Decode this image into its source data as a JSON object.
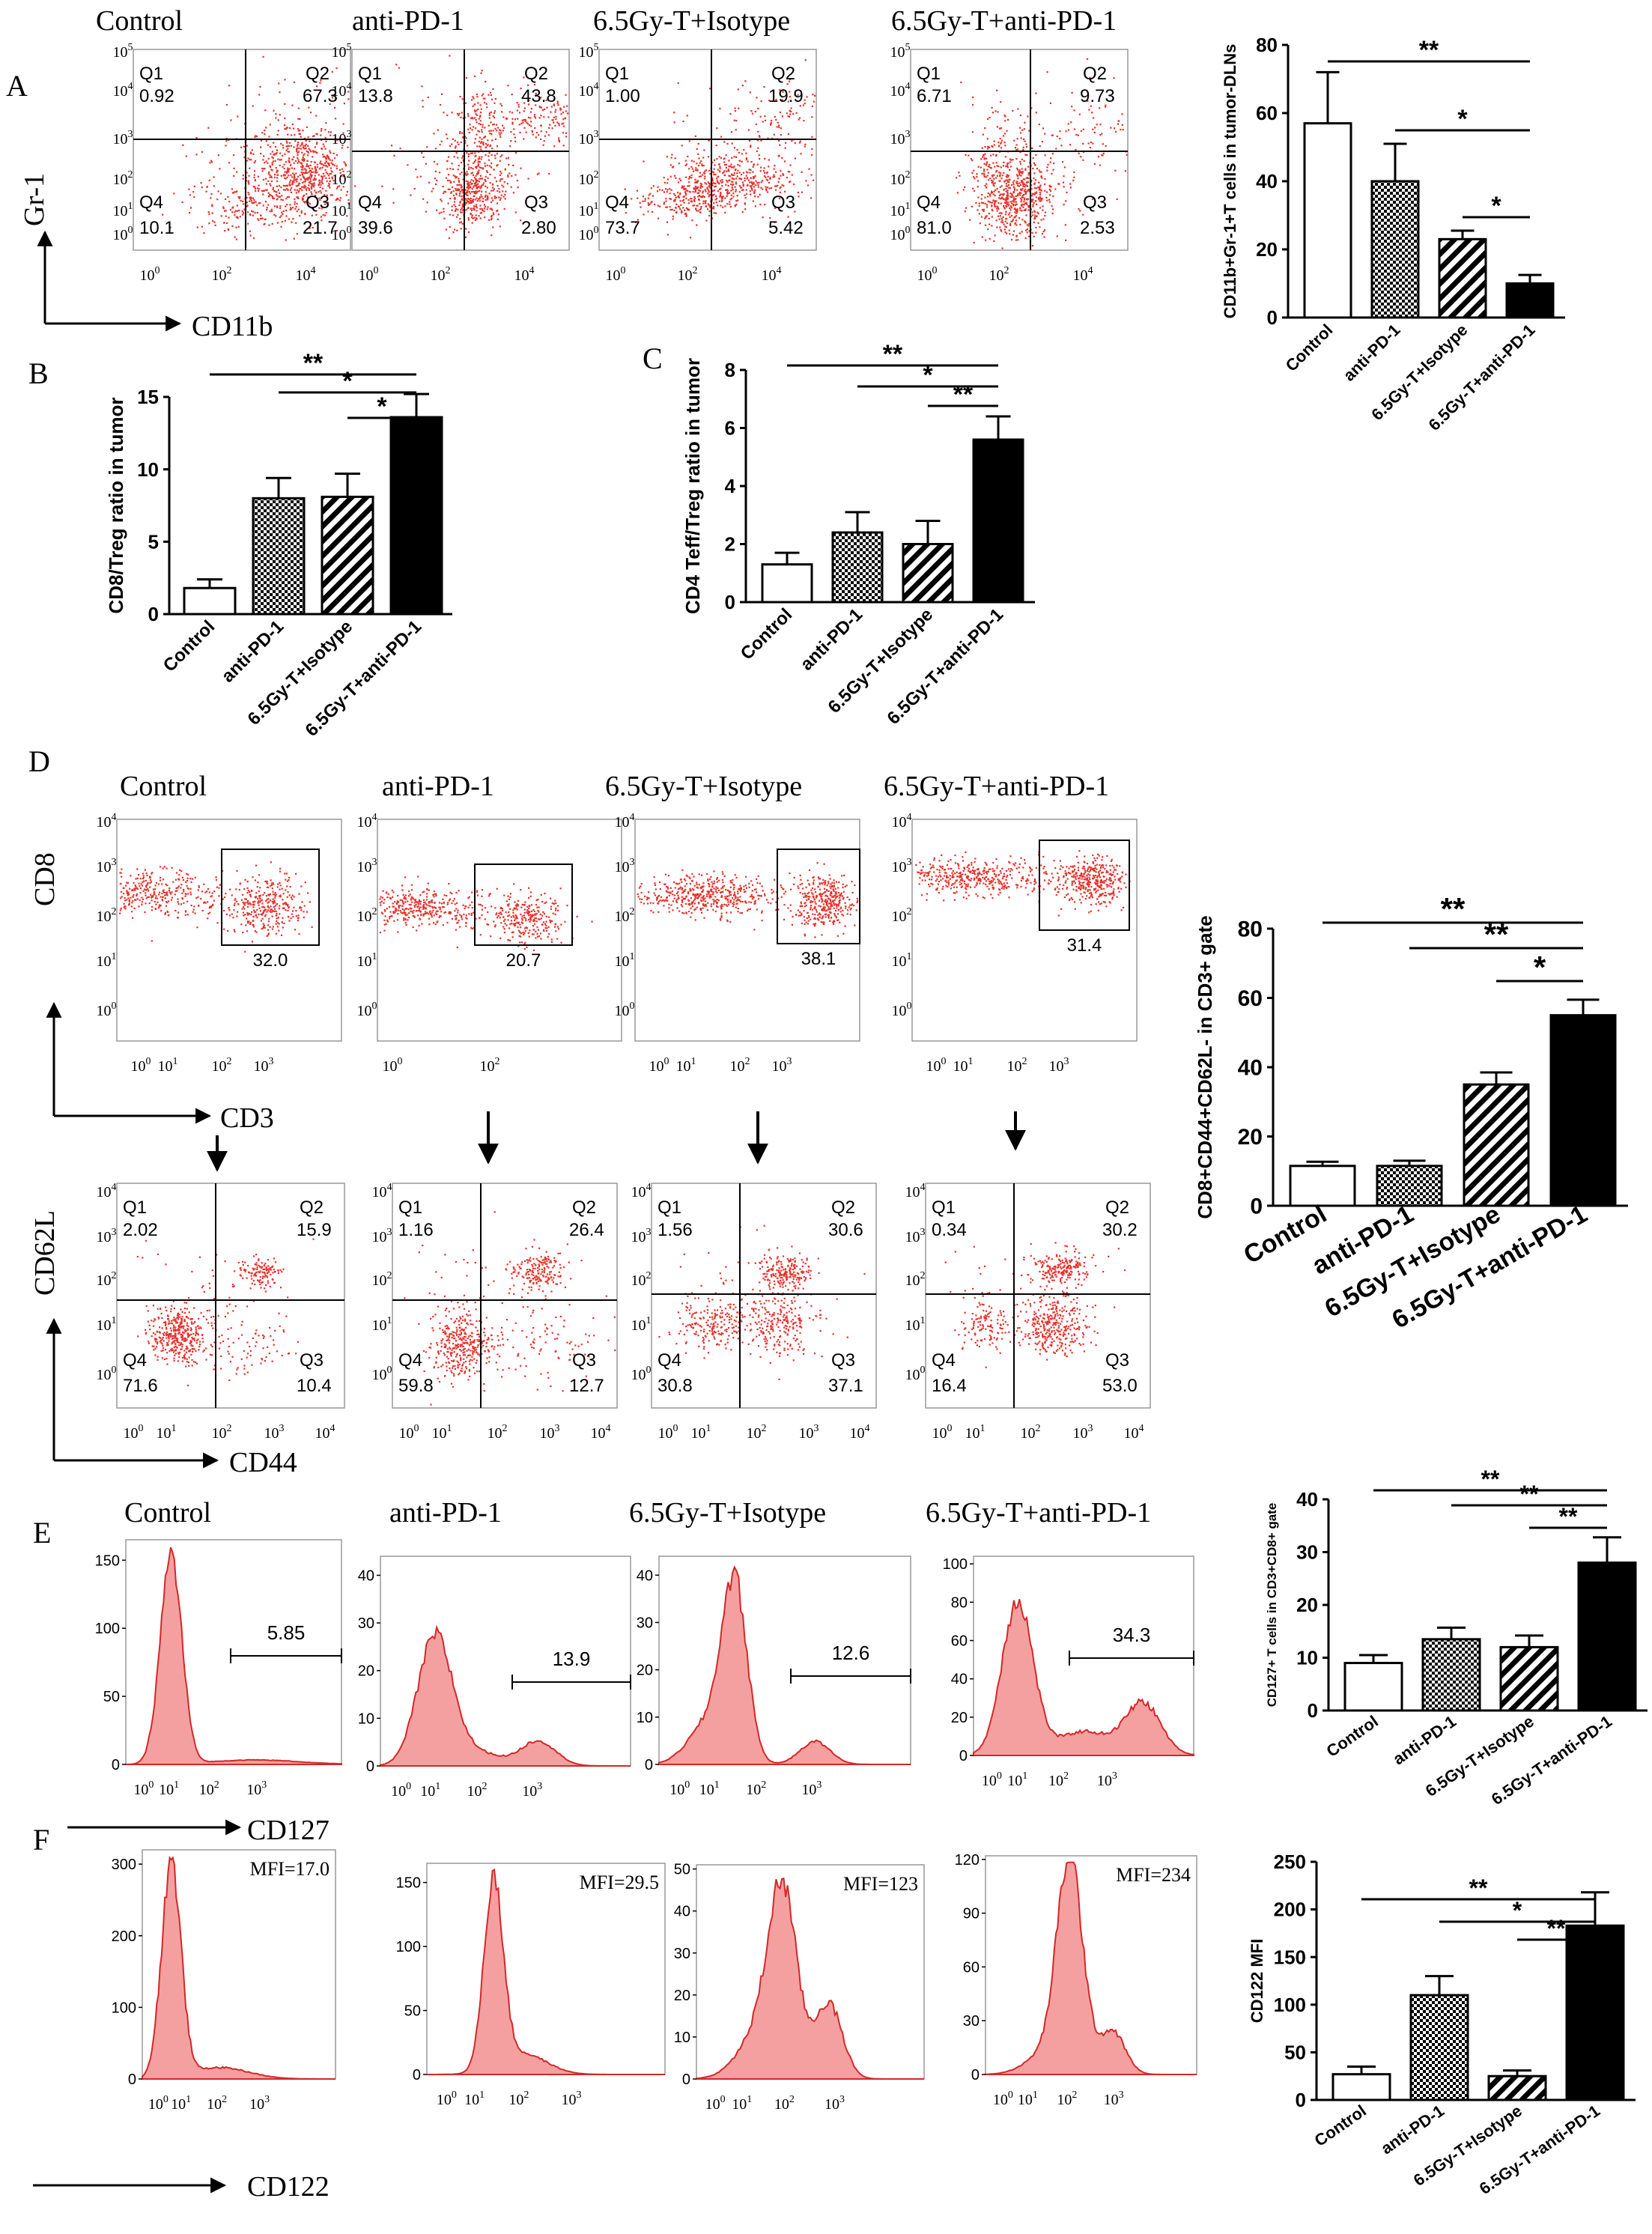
{
  "colors": {
    "dot": "#e8302a",
    "hist_fill": "#f4a0a0",
    "hist_line": "#d42828",
    "ink": "#000000"
  },
  "groups": [
    "Control",
    "anti-PD-1",
    "6.5Gy-T+Isotype",
    "6.5Gy-T+anti-PD-1"
  ],
  "decades_flow": [
    "10^0",
    "10^1",
    "10^2",
    "10^3",
    "10^4",
    "10^5"
  ],
  "panels": {
    "A": "A",
    "B": "B",
    "C": "C",
    "D": "D",
    "E": "E",
    "F": "F"
  },
  "quadrant_labels": [
    "Q1",
    "Q2",
    "Q3",
    "Q4"
  ],
  "axis_names": {
    "gr1": "Gr-1",
    "cd11b": "CD11b",
    "cd8": "CD8",
    "cd3": "CD3",
    "cd62l": "CD62L",
    "cd44": "CD44",
    "cd127": "CD127",
    "cd122": "CD122"
  },
  "panelA_quadrants": [
    {
      "q1": "0.92",
      "q2": "67.3",
      "q3": "21.7",
      "q4": "10.1"
    },
    {
      "q1": "13.8",
      "q2": "43.8",
      "q3": "2.80",
      "q4": "39.6"
    },
    {
      "q1": "1.00",
      "q2": "19.9",
      "q3": "5.42",
      "q4": "73.7"
    },
    {
      "q1": "6.71",
      "q2": "9.73",
      "q3": "2.53",
      "q4": "81.0"
    }
  ],
  "panelD_gates": [
    "32.0",
    "20.7",
    "38.1",
    "31.4"
  ],
  "panelD_quadrants": [
    {
      "q1": "2.02",
      "q2": "15.9",
      "q3": "10.4",
      "q4": "71.6"
    },
    {
      "q1": "1.16",
      "q2": "26.4",
      "q3": "12.7",
      "q4": "59.8"
    },
    {
      "q1": "1.56",
      "q2": "30.6",
      "q3": "37.1",
      "q4": "30.8"
    },
    {
      "q1": "0.34",
      "q2": "30.2",
      "q3": "53.0",
      "q4": "16.4"
    }
  ],
  "panelE_gates": [
    "5.85",
    "13.9",
    "12.6",
    "34.3"
  ],
  "panelF_mfi": [
    "MFI=17.0",
    "MFI=29.5",
    "MFI=123",
    "MFI=234"
  ],
  "chart_data": [
    {
      "id": "A",
      "type": "bar",
      "ylabel": "CD11b+Gr-1+T cells in tumor-DLNs",
      "ylim": [
        0,
        80
      ],
      "yticks": [
        0,
        20,
        40,
        60,
        80
      ],
      "categories": [
        "Control",
        "anti-PD-1",
        "6.5Gy-T+Isotype",
        "6.5Gy-T+anti-PD-1"
      ],
      "values": [
        57,
        40,
        23,
        10
      ],
      "errors": [
        15,
        11,
        2.5,
        2.5
      ],
      "significance": [
        "**",
        "*",
        "*"
      ]
    },
    {
      "id": "B",
      "type": "bar",
      "ylabel": "CD8/Treg ratio in tumor",
      "ylim": [
        0,
        15
      ],
      "yticks": [
        0,
        5,
        10,
        15
      ],
      "categories": [
        "Control",
        "anti-PD-1",
        "6.5Gy-T+Isotype",
        "6.5Gy-T+anti-PD-1"
      ],
      "values": [
        1.8,
        8.0,
        8.1,
        13.6
      ],
      "errors": [
        0.6,
        1.4,
        1.6,
        1.6
      ],
      "significance": [
        "**",
        "*",
        "*"
      ]
    },
    {
      "id": "C",
      "type": "bar",
      "ylabel": "CD4 Teff/Treg ratio in tumor",
      "ylim": [
        0,
        8
      ],
      "yticks": [
        0,
        2,
        4,
        6,
        8
      ],
      "categories": [
        "Control",
        "anti-PD-1",
        "6.5Gy-T+Isotype",
        "6.5Gy-T+anti-PD-1"
      ],
      "values": [
        1.3,
        2.4,
        2.0,
        5.6
      ],
      "errors": [
        0.4,
        0.7,
        0.8,
        0.8
      ],
      "significance": [
        "**",
        "*",
        "**"
      ]
    },
    {
      "id": "D",
      "type": "bar",
      "ylabel": "CD8+CD44+CD62L- in CD3+ gate",
      "ylim": [
        0,
        80
      ],
      "yticks": [
        0,
        20,
        40,
        60,
        80
      ],
      "categories": [
        "Control",
        "anti-PD-1",
        "6.5Gy-T+Isotype",
        "6.5Gy-T+anti-PD-1"
      ],
      "values": [
        11.5,
        11.5,
        35,
        55
      ],
      "errors": [
        1.2,
        1.5,
        3.5,
        4.5
      ],
      "significance": [
        "**",
        "**",
        "*"
      ]
    },
    {
      "id": "E",
      "type": "bar",
      "ylabel": "CD127+ T cells in CD3+CD8+ gate",
      "ylim": [
        0,
        40
      ],
      "yticks": [
        0,
        10,
        20,
        30,
        40
      ],
      "categories": [
        "Control",
        "anti-PD-1",
        "6.5Gy-T+Isotype",
        "6.5Gy-T+anti-PD-1"
      ],
      "values": [
        9,
        13.5,
        12,
        28
      ],
      "errors": [
        1.5,
        2.2,
        2.2,
        4.8
      ],
      "significance": [
        "**",
        "**",
        "**"
      ]
    },
    {
      "id": "F",
      "type": "bar",
      "ylabel": "CD122 MFI",
      "ylim": [
        0,
        250
      ],
      "yticks": [
        0,
        50,
        100,
        150,
        200,
        250
      ],
      "categories": [
        "Control",
        "anti-PD-1",
        "6.5Gy-T+Isotype",
        "6.5Gy-T+anti-PD-1"
      ],
      "values": [
        27,
        110,
        25,
        183
      ],
      "errors": [
        8,
        20,
        6,
        35
      ],
      "significance": [
        "**",
        "*",
        "**"
      ]
    }
  ]
}
